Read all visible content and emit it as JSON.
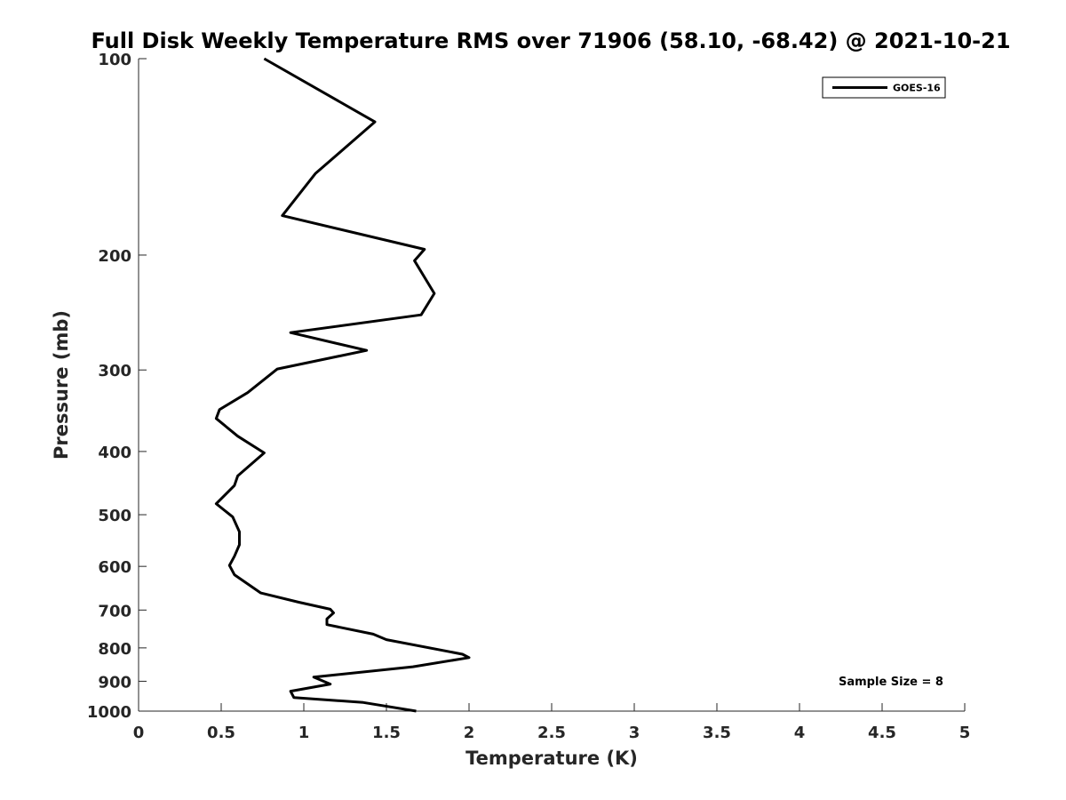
{
  "chart_data": {
    "type": "line",
    "title": "Full Disk Weekly Temperature RMS over 71906 (58.10, -68.42) @ 2021-10-21",
    "xlabel": "Temperature (K)",
    "ylabel": "Pressure (mb)",
    "xlim": [
      0,
      5
    ],
    "ylim": [
      1000,
      100
    ],
    "y_scale": "log",
    "y_reversed": true,
    "grid": false,
    "legend_position": "top-right",
    "x_ticks": [
      "0",
      "0.5",
      "1",
      "1.5",
      "2",
      "2.5",
      "3",
      "3.5",
      "4",
      "4.5",
      "5"
    ],
    "y_ticks": [
      "100",
      "200",
      "300",
      "400",
      "500",
      "600",
      "700",
      "800",
      "900",
      "1000"
    ],
    "series": [
      {
        "name": "GOES-16",
        "color": "#000000",
        "points": [
          [
            0.76,
            100
          ],
          [
            1.43,
            125
          ],
          [
            1.07,
            150
          ],
          [
            0.87,
            174
          ],
          [
            1.73,
            196
          ],
          [
            1.67,
            204
          ],
          [
            1.79,
            229
          ],
          [
            1.71,
            247
          ],
          [
            0.92,
            263
          ],
          [
            1.38,
            280
          ],
          [
            0.84,
            299
          ],
          [
            0.66,
            325
          ],
          [
            0.49,
            345
          ],
          [
            0.47,
            356
          ],
          [
            0.6,
            379
          ],
          [
            0.76,
            402
          ],
          [
            0.6,
            436
          ],
          [
            0.58,
            451
          ],
          [
            0.47,
            481
          ],
          [
            0.57,
            504
          ],
          [
            0.61,
            531
          ],
          [
            0.61,
            556
          ],
          [
            0.58,
            579
          ],
          [
            0.55,
            598
          ],
          [
            0.58,
            618
          ],
          [
            0.74,
            659
          ],
          [
            0.97,
            681
          ],
          [
            1.16,
            698
          ],
          [
            1.18,
            707
          ],
          [
            1.14,
            722
          ],
          [
            1.14,
            737
          ],
          [
            1.42,
            762
          ],
          [
            1.5,
            777
          ],
          [
            1.96,
            818
          ],
          [
            2.0,
            828
          ],
          [
            1.66,
            855
          ],
          [
            1.06,
            887
          ],
          [
            1.16,
            909
          ],
          [
            0.92,
            932
          ],
          [
            0.94,
            953
          ],
          [
            1.36,
            970
          ],
          [
            1.68,
            1000
          ]
        ]
      }
    ],
    "annotation": "Sample Size = 8"
  }
}
